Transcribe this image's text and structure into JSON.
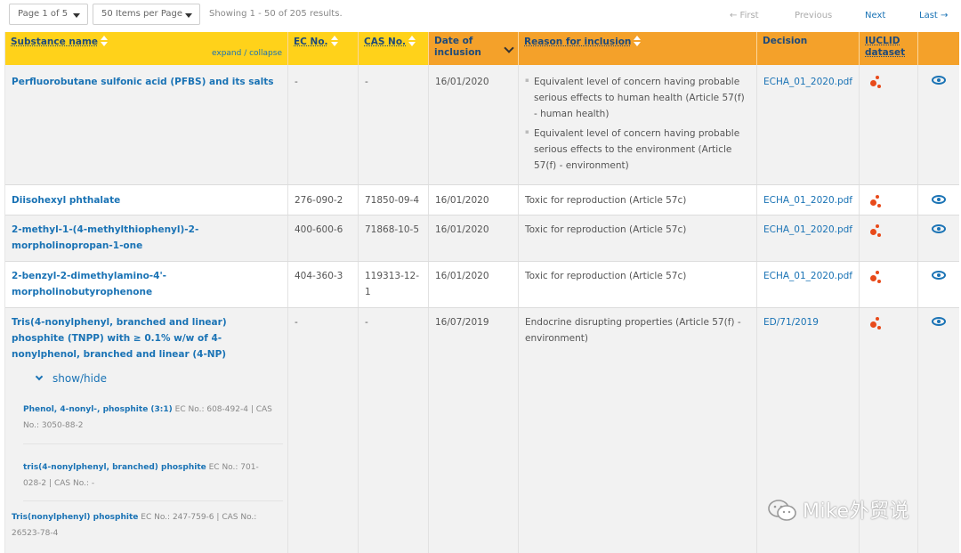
{
  "pager": {
    "page_select": "Page 1 of 5",
    "items_select": "50 Items per Page",
    "showing": "Showing 1 - 50 of 205 results.",
    "first": "← First",
    "previous": "Previous",
    "next": "Next",
    "last": "Last →"
  },
  "columns": {
    "substance": "Substance name",
    "expand_collapse": "expand / collapse",
    "ec": "EC No.",
    "cas": "CAS No.",
    "date": "Date of inclusion",
    "reason": "Reason for inclusion",
    "decision": "Decision",
    "iuclid": "IUCLID dataset"
  },
  "rows": [
    {
      "name": "Perfluorobutane sulfonic acid (PFBS) and its salts",
      "ec": "-",
      "cas": "-",
      "date": "16/01/2020",
      "reasons": [
        "Equivalent level of concern having probable serious effects to human health (Article 57(f) - human health)",
        "Equivalent level of concern having probable serious effects to the environment (Article 57(f) - environment)"
      ],
      "decision": "ECHA_01_2020.pdf"
    },
    {
      "name": "Diisohexyl phthalate",
      "ec": "276-090-2",
      "cas": "71850-09-4",
      "date": "16/01/2020",
      "reason": "Toxic for reproduction (Article 57c)",
      "decision": "ECHA_01_2020.pdf"
    },
    {
      "name": "2-methyl-1-(4-methylthiophenyl)-2-morpholinopropan-1-one",
      "ec": "400-600-6",
      "cas": "71868-10-5",
      "date": "16/01/2020",
      "reason": "Toxic for reproduction (Article 57c)",
      "decision": "ECHA_01_2020.pdf"
    },
    {
      "name": "2-benzyl-2-dimethylamino-4'-morpholinobutyrophenone",
      "ec": "404-360-3",
      "cas": "119313-12-1",
      "date": "16/01/2020",
      "reason": "Toxic for reproduction (Article 57c)",
      "decision": "ECHA_01_2020.pdf"
    },
    {
      "name": "Tris(4-nonylphenyl, branched and linear) phosphite (TNPP) with ≥ 0.1% w/w of 4-nonylphenol, branched and linear (4-NP)",
      "ec": "-",
      "cas": "-",
      "date": "16/07/2019",
      "reason": "Endocrine disrupting properties (Article 57(f) - environment)",
      "decision": "ED/71/2019",
      "toggle": "show/hide",
      "subs": [
        {
          "name": "Phenol, 4-nonyl-, phosphite (3:1)",
          "ec": "608-492-4",
          "cas": "3050-88-2"
        },
        {
          "name": "tris(4-nonylphenyl, branched) phosphite",
          "ec": "701-028-2",
          "cas": "-"
        },
        {
          "name": "Tris(nonylphenyl) phosphite",
          "ec": "247-759-6",
          "cas": "26523-78-4"
        }
      ]
    }
  ],
  "labels": {
    "ec_prefix": "EC No.:",
    "cas_prefix": "CAS No.:",
    "sep": "|"
  },
  "watermark": "Mike外贸说",
  "colors": {
    "header": "#f4a12a",
    "header_sorted": "#ffd21a",
    "link": "#1a73b5",
    "iuclid": "#e84a1a"
  }
}
